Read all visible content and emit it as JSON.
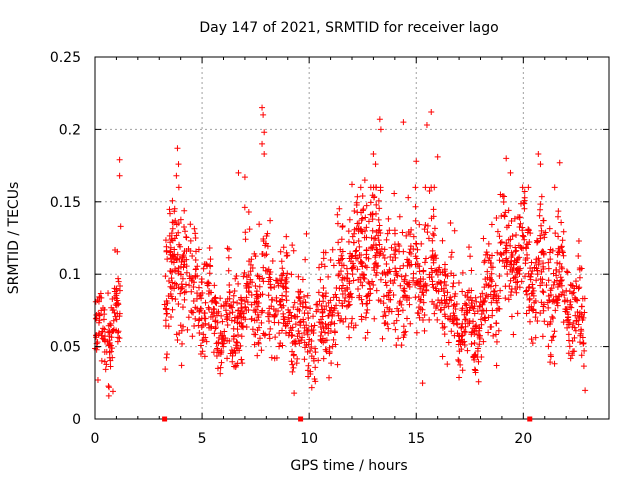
{
  "chart_data": {
    "type": "scatter",
    "title": "Day 147 of 2021, SRMTID for receiver lago",
    "xlabel": "GPS time / hours",
    "ylabel": "SRMTID / TECUs",
    "xlim": [
      0,
      24
    ],
    "ylim": [
      0,
      0.25
    ],
    "xticks": [
      0,
      5,
      10,
      15,
      20
    ],
    "xtick_labels": [
      "0",
      "5",
      "10",
      "15",
      "20"
    ],
    "yticks": [
      0,
      0.05,
      0.1,
      0.15,
      0.2,
      0.25
    ],
    "ytick_labels": [
      "0",
      "0.05",
      "0.1",
      "0.15",
      "0.2",
      "0.25"
    ],
    "grid": true,
    "marker": "+",
    "series_color": "#ff0000",
    "gap_markers_x": [
      3.25,
      9.6,
      20.3
    ],
    "segments": [
      {
        "start": 0.0,
        "end": 1.2
      },
      {
        "start": 3.25,
        "end": 22.9
      }
    ],
    "envelope": [
      {
        "x": 0.0,
        "base": 0.062,
        "spread": 0.02
      },
      {
        "x": 0.5,
        "base": 0.055,
        "spread": 0.018
      },
      {
        "x": 1.0,
        "base": 0.065,
        "spread": 0.018
      },
      {
        "x": 3.5,
        "base": 0.095,
        "spread": 0.03
      },
      {
        "x": 4.0,
        "base": 0.105,
        "spread": 0.028
      },
      {
        "x": 5.0,
        "base": 0.08,
        "spread": 0.02
      },
      {
        "x": 6.0,
        "base": 0.062,
        "spread": 0.018
      },
      {
        "x": 7.0,
        "base": 0.072,
        "spread": 0.022
      },
      {
        "x": 8.0,
        "base": 0.095,
        "spread": 0.03
      },
      {
        "x": 9.0,
        "base": 0.072,
        "spread": 0.02
      },
      {
        "x": 10.0,
        "base": 0.055,
        "spread": 0.018
      },
      {
        "x": 11.0,
        "base": 0.075,
        "spread": 0.022
      },
      {
        "x": 12.0,
        "base": 0.105,
        "spread": 0.025
      },
      {
        "x": 13.0,
        "base": 0.115,
        "spread": 0.03
      },
      {
        "x": 14.0,
        "base": 0.09,
        "spread": 0.025
      },
      {
        "x": 15.0,
        "base": 0.1,
        "spread": 0.025
      },
      {
        "x": 16.0,
        "base": 0.1,
        "spread": 0.03
      },
      {
        "x": 17.0,
        "base": 0.065,
        "spread": 0.018
      },
      {
        "x": 18.0,
        "base": 0.068,
        "spread": 0.018
      },
      {
        "x": 19.0,
        "base": 0.105,
        "spread": 0.025
      },
      {
        "x": 20.0,
        "base": 0.11,
        "spread": 0.025
      },
      {
        "x": 21.0,
        "base": 0.09,
        "spread": 0.025
      },
      {
        "x": 22.0,
        "base": 0.085,
        "spread": 0.022
      },
      {
        "x": 23.0,
        "base": 0.06,
        "spread": 0.018
      }
    ],
    "outliers": [
      [
        1.15,
        0.179
      ],
      [
        1.15,
        0.168
      ],
      [
        1.2,
        0.133
      ],
      [
        3.85,
        0.187
      ],
      [
        3.9,
        0.176
      ],
      [
        3.8,
        0.168
      ],
      [
        6.7,
        0.17
      ],
      [
        7.0,
        0.167
      ],
      [
        7.8,
        0.215
      ],
      [
        7.85,
        0.21
      ],
      [
        7.9,
        0.198
      ],
      [
        7.8,
        0.19
      ],
      [
        7.9,
        0.183
      ],
      [
        12.0,
        0.162
      ],
      [
        12.6,
        0.165
      ],
      [
        13.0,
        0.183
      ],
      [
        13.1,
        0.176
      ],
      [
        13.3,
        0.207
      ],
      [
        13.35,
        0.2
      ],
      [
        14.4,
        0.205
      ],
      [
        15.0,
        0.178
      ],
      [
        15.5,
        0.203
      ],
      [
        15.7,
        0.212
      ],
      [
        16.0,
        0.181
      ],
      [
        19.2,
        0.18
      ],
      [
        19.4,
        0.17
      ],
      [
        20.7,
        0.183
      ],
      [
        20.8,
        0.176
      ],
      [
        21.7,
        0.177
      ]
    ]
  }
}
